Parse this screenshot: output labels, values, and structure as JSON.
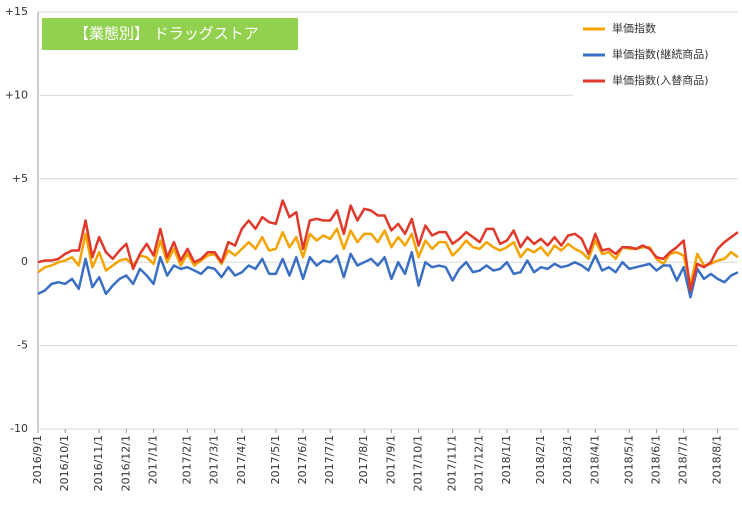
{
  "chart_data": {
    "type": "line",
    "title": "【業態別】 ドラッグストア",
    "categories": [
      "2016/9/1",
      null,
      null,
      null,
      "2016/10/1",
      null,
      null,
      null,
      null,
      "2016/11/1",
      null,
      null,
      null,
      "2016/12/1",
      null,
      null,
      null,
      "2017/1/1",
      null,
      null,
      null,
      null,
      "2017/2/1",
      null,
      null,
      null,
      "2017/3/1",
      null,
      null,
      null,
      "2017/4/1",
      null,
      null,
      null,
      null,
      "2017/5/1",
      null,
      null,
      null,
      "2017/6/1",
      null,
      null,
      null,
      "2017/7/1",
      null,
      null,
      null,
      null,
      "2017/8/1",
      null,
      null,
      null,
      "2017/9/1",
      null,
      null,
      null,
      "2017/10/1",
      null,
      null,
      null,
      null,
      "2017/11/1",
      null,
      null,
      null,
      "2017/12/1",
      null,
      null,
      null,
      "2018/1/1",
      null,
      null,
      null,
      null,
      "2018/2/1",
      null,
      null,
      null,
      "2018/3/1",
      null,
      null,
      null,
      "2018/4/1",
      null,
      null,
      null,
      null,
      "2018/5/1",
      null,
      null,
      null,
      "2018/6/1",
      null,
      null,
      null,
      "2018/7/1",
      null,
      null,
      null,
      null,
      "2018/8/1",
      null,
      null,
      null
    ],
    "series": [
      {
        "name": "単価指数",
        "color": "#f5a300",
        "values": [
          -0.6,
          -0.3,
          -0.2,
          0.0,
          0.1,
          0.3,
          -0.2,
          1.7,
          -0.3,
          0.6,
          -0.5,
          -0.2,
          0.1,
          0.2,
          -0.2,
          0.4,
          0.3,
          -0.1,
          1.3,
          0.0,
          0.8,
          -0.2,
          0.5,
          -0.2,
          0.1,
          0.4,
          0.5,
          -0.1,
          0.7,
          0.4,
          0.8,
          1.2,
          0.8,
          1.5,
          0.7,
          0.8,
          1.8,
          0.9,
          1.5,
          0.3,
          1.7,
          1.3,
          1.6,
          1.4,
          2.0,
          0.8,
          1.9,
          1.2,
          1.7,
          1.7,
          1.2,
          1.9,
          0.9,
          1.5,
          1.0,
          1.7,
          0.3,
          1.3,
          0.8,
          1.2,
          1.2,
          0.4,
          0.8,
          1.3,
          0.9,
          0.8,
          1.2,
          0.9,
          0.7,
          0.9,
          1.2,
          0.3,
          0.8,
          0.6,
          0.9,
          0.4,
          1.0,
          0.7,
          1.1,
          0.8,
          0.6,
          0.2,
          1.3,
          0.5,
          0.6,
          0.2,
          0.9,
          0.8,
          0.8,
          0.9,
          0.9,
          0.2,
          -0.1,
          0.5,
          0.6,
          0.4,
          -1.4,
          0.5,
          -0.2,
          -0.1,
          0.1,
          0.2,
          0.6,
          0.3
        ]
      },
      {
        "name": "単価指数(継続商品)",
        "color": "#3a6fc4",
        "values": [
          -1.9,
          -1.7,
          -1.3,
          -1.2,
          -1.3,
          -1.0,
          -1.6,
          0.2,
          -1.5,
          -0.9,
          -1.9,
          -1.4,
          -1.0,
          -0.8,
          -1.3,
          -0.4,
          -0.8,
          -1.3,
          0.3,
          -0.8,
          -0.2,
          -0.4,
          -0.3,
          -0.5,
          -0.7,
          -0.3,
          -0.4,
          -0.9,
          -0.3,
          -0.8,
          -0.6,
          -0.2,
          -0.4,
          0.2,
          -0.7,
          -0.7,
          0.2,
          -0.8,
          0.3,
          -1.0,
          0.3,
          -0.2,
          0.1,
          0.0,
          0.4,
          -0.9,
          0.5,
          -0.2,
          0.0,
          0.2,
          -0.2,
          0.3,
          -1.0,
          0.0,
          -0.7,
          0.6,
          -1.4,
          0.0,
          -0.3,
          -0.2,
          -0.3,
          -1.1,
          -0.4,
          0.0,
          -0.6,
          -0.5,
          -0.2,
          -0.5,
          -0.4,
          0.0,
          -0.7,
          -0.6,
          0.1,
          -0.6,
          -0.3,
          -0.4,
          -0.1,
          -0.3,
          -0.2,
          0.0,
          -0.2,
          -0.5,
          0.4,
          -0.5,
          -0.3,
          -0.6,
          0.0,
          -0.4,
          -0.3,
          -0.2,
          -0.1,
          -0.5,
          -0.2,
          -0.2,
          -1.1,
          -0.3,
          -2.1,
          -0.4,
          -1.0,
          -0.7,
          -1.0,
          -1.2,
          -0.8,
          -0.6
        ]
      },
      {
        "name": "単価指数(入替商品)",
        "color": "#e0392b",
        "values": [
          0.0,
          0.1,
          0.1,
          0.2,
          0.5,
          0.7,
          0.7,
          2.5,
          0.3,
          1.5,
          0.6,
          0.2,
          0.7,
          1.1,
          -0.4,
          0.5,
          1.1,
          0.4,
          2.0,
          0.3,
          1.2,
          0.1,
          0.8,
          0.0,
          0.2,
          0.6,
          0.6,
          0.0,
          1.2,
          1.0,
          2.0,
          2.5,
          2.0,
          2.7,
          2.4,
          2.3,
          3.7,
          2.7,
          3.0,
          0.8,
          2.5,
          2.6,
          2.5,
          2.5,
          3.1,
          1.7,
          3.4,
          2.5,
          3.2,
          3.1,
          2.8,
          2.8,
          1.9,
          2.3,
          1.7,
          2.6,
          1.0,
          2.2,
          1.6,
          1.8,
          1.8,
          1.1,
          1.4,
          1.8,
          1.5,
          1.2,
          2.0,
          2.0,
          1.1,
          1.3,
          1.9,
          0.9,
          1.5,
          1.1,
          1.4,
          1.0,
          1.5,
          1.0,
          1.6,
          1.7,
          1.4,
          0.5,
          1.7,
          0.7,
          0.8,
          0.5,
          0.9,
          0.9,
          0.8,
          1.0,
          0.8,
          0.3,
          0.2,
          0.6,
          0.9,
          1.3,
          -1.7,
          -0.1,
          -0.3,
          0.0,
          0.8,
          1.2,
          1.5,
          1.8
        ]
      }
    ],
    "ylim": [
      -10,
      15
    ],
    "yticks": [
      -10,
      -5,
      0,
      {
        "value": 5,
        "label": "+5"
      },
      {
        "value": 10,
        "label": "+10"
      },
      {
        "value": 15,
        "label": "+15"
      }
    ],
    "grid": true,
    "legend": "top-right"
  }
}
